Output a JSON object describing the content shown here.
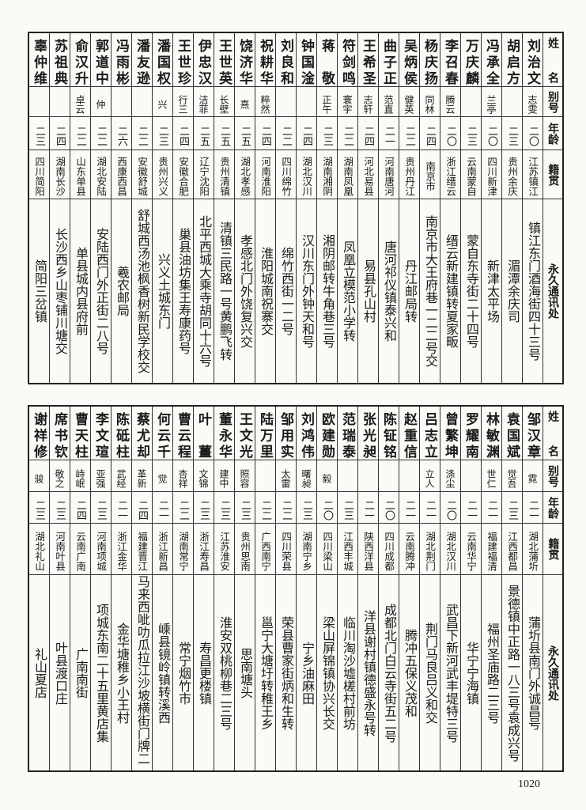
{
  "headers": {
    "name": "姓名",
    "alias": "别号",
    "age": "年龄",
    "origin": "籍贯",
    "address": "永久通讯处"
  },
  "tables": [
    {
      "rows": [
        {
          "name": "刘治文",
          "alias": "志雯",
          "age": "二〇",
          "origin": "江苏镇江",
          "address": "镇江东门酒海街四十三号"
        },
        {
          "name": "胡启方",
          "alias": "",
          "age": "二三",
          "origin": "贵州余庆",
          "address": "湄潭余庆司"
        },
        {
          "name": "冯承全",
          "alias": "兰亭",
          "age": "二〇",
          "origin": "四川新津",
          "address": "新津太平场"
        },
        {
          "name": "万庆麟",
          "alias": "",
          "age": "二三",
          "origin": "云南蒙自",
          "address": "蒙自东寺街二十四号"
        },
        {
          "name": "李召春",
          "alias": "腾云",
          "age": "二〇",
          "origin": "浙江缙云",
          "address": "缙云新建镇转夏家畈"
        },
        {
          "name": "杨庆扬",
          "alias": "同林",
          "age": "二四",
          "origin": "南京市",
          "address": "南京市大王府巷一二二号交"
        },
        {
          "name": "吴炳侯",
          "alias": "健英",
          "age": "二二",
          "origin": "贵州丹江",
          "address": "丹江邮局转"
        },
        {
          "name": "曲子正",
          "alias": "范直",
          "age": "二一",
          "origin": "河南唐河",
          "address": "唐河祁仪镇泰兴和"
        },
        {
          "name": "王希圣",
          "alias": "志轩",
          "age": "二四",
          "origin": "河北易县",
          "address": "易县孔山村"
        },
        {
          "name": "符剑鸣",
          "alias": "寰宇",
          "age": "二二",
          "origin": "湖南凤凰",
          "address": "凤凰立模范小学转"
        },
        {
          "name": "蒋敬",
          "alias": "正午",
          "age": "二三",
          "origin": "湖南湘阴",
          "address": "湘阴邮转牛角巷三号"
        },
        {
          "name": "钟国淦",
          "alias": "",
          "age": "二四",
          "origin": "湖北汉川",
          "address": "汉川东门外钟天和号"
        },
        {
          "name": "刘良和",
          "alias": "",
          "age": "二二",
          "origin": "四川绵竹",
          "address": "绵竹西街一二号"
        },
        {
          "name": "祝耕华",
          "alias": "粹然",
          "age": "二四",
          "origin": "河南淮阳",
          "address": "淮阳城南祝寨交"
        },
        {
          "name": "饶济华",
          "alias": "熹",
          "age": "二五",
          "origin": "湖北孝感",
          "address": "孝感北门外饶复兴交"
        },
        {
          "name": "王世英",
          "alias": "长壁",
          "age": "二五",
          "origin": "贵州清镇",
          "address": "清镇三民路一号黄鹏飞转"
        },
        {
          "name": "伊忠汉",
          "alias": "洁菲",
          "age": "二五",
          "origin": "辽宁沈阳",
          "address": "北平西城大乘寺胡同十六号"
        },
        {
          "name": "王世珍",
          "alias": "行三",
          "age": "二四",
          "origin": "安徽合肥",
          "address": "巢县油坊集王寿康药号"
        },
        {
          "name": "潘国权",
          "alias": "兴",
          "age": "二三",
          "origin": "贵州兴义",
          "address": "兴义土城东门"
        },
        {
          "name": "潘友逊",
          "alias": "",
          "age": "二二",
          "origin": "安徽舒城",
          "address": "舒城西汤池枫香树新民学校交"
        },
        {
          "name": "冯雨彬",
          "alias": "",
          "age": "二六",
          "origin": "西康西昌",
          "address": "羲农邮局"
        },
        {
          "name": "郭道中",
          "alias": "仲",
          "age": "二二",
          "origin": "湖北安陆",
          "address": "安陆西门外正街二八号"
        },
        {
          "name": "俞汉升",
          "alias": "卓云",
          "age": "二二",
          "origin": "山东单县",
          "address": "单县城内县府前"
        },
        {
          "name": "苏祖典",
          "alias": "",
          "age": "二四",
          "origin": "湖南长沙",
          "address": "长沙西乡山枣铺川塘交"
        },
        {
          "name": "辜仲维",
          "alias": "",
          "age": "二三",
          "origin": "四川简阳",
          "address": "简阳三岔镇"
        }
      ]
    },
    {
      "rows": [
        {
          "name": "邹汉章",
          "alias": "霓",
          "age": "二一",
          "origin": "湖北蒲圻",
          "address": "蒲圻县南门外诚昌号"
        },
        {
          "name": "袁国斌",
          "alias": "觉吾",
          "age": "二三",
          "origin": "江西都昌",
          "address": "景德镇中正路一八三号袁成兴号"
        },
        {
          "name": "林敏渊",
          "alias": "世仁",
          "age": "二一",
          "origin": "福建福清",
          "address": "福州圣庙路二三号"
        },
        {
          "name": "罗耀南",
          "alias": "",
          "age": "二一",
          "origin": "云南华宁",
          "address": "华宁宁海镇"
        },
        {
          "name": "曾繁坤",
          "alias": "涤尘",
          "age": "二〇",
          "origin": "湖北汉川",
          "address": "武昌下新河武丰堤特三号"
        },
        {
          "name": "吕志立",
          "alias": "立人",
          "age": "二一",
          "origin": "湖北荆门",
          "address": "荆门马良吕义和交"
        },
        {
          "name": "赵重信",
          "alias": "",
          "age": "二一",
          "origin": "云南腾冲",
          "address": "腾冲五保义茂和"
        },
        {
          "name": "陈钲铭",
          "alias": "",
          "age": "二〇",
          "origin": "四川成都",
          "address": "成都北门白云寺街五二号"
        },
        {
          "name": "张光昶",
          "alias": "",
          "age": "二一",
          "origin": "陕西洋县",
          "address": "洋县谢村镇德盛永号转"
        },
        {
          "name": "范瑞泰",
          "alias": "",
          "age": "二三",
          "origin": "江西丰城",
          "address": "临川淘沙墟槎村前坊"
        },
        {
          "name": "欧建勋",
          "alias": "毅",
          "age": "二〇",
          "origin": "四川梁山",
          "address": "梁山屏锦镇协兴长交"
        },
        {
          "name": "刘鸿伟",
          "alias": "曙昶",
          "age": "二三",
          "origin": "湖南宁乡",
          "address": "宁乡油麻田"
        },
        {
          "name": "邹用实",
          "alias": "太雷",
          "age": "二二",
          "origin": "四川荣县",
          "address": "荣县曹家街炳和生转"
        },
        {
          "name": "陆万里",
          "alias": "",
          "age": "二二",
          "origin": "广西南宁",
          "address": "邕宁大塘圩转稚王乡"
        },
        {
          "name": "王文光",
          "alias": "照容",
          "age": "二三",
          "origin": "贵州思南",
          "address": "思南塘头"
        },
        {
          "name": "董永华",
          "alias": "建中",
          "age": "二三",
          "origin": "江苏淮安",
          "address": "淮安双桃柳巷二三号"
        },
        {
          "name": "叶薑",
          "alias": "文锦",
          "age": "二三",
          "origin": "浙江寿昌",
          "address": "寿昌更楼镇"
        },
        {
          "name": "曹云程",
          "alias": "杏祥",
          "age": "二二",
          "origin": "湖南常宁",
          "address": "常宁烟竹市"
        },
        {
          "name": "何云千",
          "alias": "觉",
          "age": "二一",
          "origin": "浙江新昌",
          "address": "嵊县镜岭镇转溪西"
        },
        {
          "name": "蔡尤却",
          "alias": "革新",
          "age": "二四",
          "origin": "福建晋江",
          "address": "马来西呲叻瓜拉江沙坡横街门牌二号"
        },
        {
          "name": "陈砥柱",
          "alias": "武经",
          "age": "二一",
          "origin": "浙江金华",
          "address": "金华塘稚乡小王村"
        },
        {
          "name": "李文瑄",
          "alias": "亚强",
          "age": "二三",
          "origin": "河南项城",
          "address": "项城东南二十五里黄店集"
        },
        {
          "name": "曹天柱",
          "alias": "峙岷",
          "age": "二四",
          "origin": "云南广南",
          "address": "广南南街"
        },
        {
          "name": "席书钦",
          "alias": "敬之",
          "age": "二三",
          "origin": "河南叶县",
          "address": "叶县渡口庄"
        },
        {
          "name": "谢祥修",
          "alias": "骏",
          "age": "二三",
          "origin": "湖北礼山",
          "address": "礼山夏店"
        }
      ]
    }
  ],
  "page_number": "1020"
}
